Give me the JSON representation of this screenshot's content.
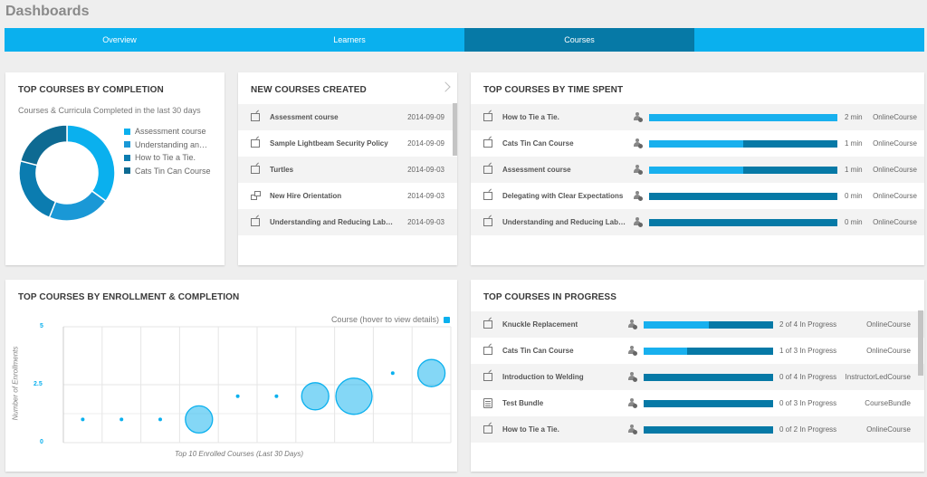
{
  "page": {
    "title": "Dashboards"
  },
  "tabs": [
    {
      "label": "Overview",
      "active": false
    },
    {
      "label": "Learners",
      "active": false
    },
    {
      "label": "Courses",
      "active": true
    },
    {
      "label": "",
      "active": false
    }
  ],
  "colors": {
    "accent": "#0ab0ee",
    "dark": "#0679a6",
    "mid": "#18a0de",
    "darkest": "#0e6a92"
  },
  "completion": {
    "title": "TOP COURSES BY COMPLETION",
    "subtitle": "Courses & Curricula Completed in the last 30 days",
    "legend": [
      {
        "label": "Assessment course",
        "color": "#0ab0ee"
      },
      {
        "label": "Understanding an…",
        "color": "#1a98d6"
      },
      {
        "label": "How to Tie a Tie.",
        "color": "#0b7cb0"
      },
      {
        "label": "Cats Tin Can Course",
        "color": "#0e6a92"
      }
    ],
    "chart_data": {
      "type": "pie",
      "categories": [
        "Assessment course",
        "Understanding an…",
        "How to Tie a Tie.",
        "Cats Tin Can Course"
      ],
      "values": [
        35,
        21,
        23,
        21
      ]
    }
  },
  "new_courses": {
    "title": "NEW COURSES CREATED",
    "items": [
      {
        "name": "Assessment course",
        "date": "2014-09-09",
        "icon": "course-icon"
      },
      {
        "name": "Sample Lightbeam Security Policy",
        "date": "2014-09-09",
        "icon": "course-icon"
      },
      {
        "name": "Turtles",
        "date": "2014-09-03",
        "icon": "course-icon"
      },
      {
        "name": "New Hire Orientation",
        "date": "2014-09-03",
        "icon": "curriculum-icon"
      },
      {
        "name": "Understanding and Reducing Lab…",
        "date": "2014-09-03",
        "icon": "course-icon"
      }
    ]
  },
  "time_spent": {
    "title": "TOP COURSES BY TIME SPENT",
    "items": [
      {
        "name": "How to Tie a Tie.",
        "time": "2 min",
        "type": "OnlineCourse",
        "fill": 1.0
      },
      {
        "name": "Cats Tin Can Course",
        "time": "1 min",
        "type": "OnlineCourse",
        "fill": 0.5
      },
      {
        "name": "Assessment course",
        "time": "1 min",
        "type": "OnlineCourse",
        "fill": 0.5
      },
      {
        "name": "Delegating with Clear Expectations",
        "time": "0 min",
        "type": "OnlineCourse",
        "fill": 0
      },
      {
        "name": "Understanding and Reducing Lab…",
        "time": "0 min",
        "type": "OnlineCourse",
        "fill": 0
      }
    ]
  },
  "enrollment": {
    "title": "TOP COURSES BY ENROLLMENT & COMPLETION",
    "legend_label": "Course (hover to view details)",
    "chart_data": {
      "type": "scatter",
      "ylabel": "Number of Enrollments",
      "xlabel": "Top 10 Enrolled Courses (Last 30 Days)",
      "yticks": [
        "0",
        "2.5",
        "5"
      ],
      "ylim": [
        0,
        5
      ],
      "points": [
        {
          "x": 1,
          "y": 1,
          "size": 0
        },
        {
          "x": 2,
          "y": 1,
          "size": 0
        },
        {
          "x": 3,
          "y": 1,
          "size": 0
        },
        {
          "x": 4,
          "y": 1,
          "size": 1
        },
        {
          "x": 5,
          "y": 2,
          "size": 0
        },
        {
          "x": 6,
          "y": 2,
          "size": 0
        },
        {
          "x": 7,
          "y": 2,
          "size": 1
        },
        {
          "x": 8,
          "y": 2,
          "size": 2
        },
        {
          "x": 9,
          "y": 3,
          "size": 0
        },
        {
          "x": 10,
          "y": 3,
          "size": 1
        }
      ]
    }
  },
  "in_progress": {
    "title": "TOP COURSES IN PROGRESS",
    "items": [
      {
        "name": "Knuckle Replacement",
        "progress": "2 of 4 In Progress",
        "type": "OnlineCourse",
        "fill": 0.5,
        "icon": "course-icon"
      },
      {
        "name": "Cats Tin Can Course",
        "progress": "1 of 3 In Progress",
        "type": "OnlineCourse",
        "fill": 0.333,
        "icon": "course-icon"
      },
      {
        "name": "Introduction to Welding",
        "progress": "0 of 4 In Progress",
        "type": "InstructorLedCourse",
        "fill": 0,
        "icon": "instructor-led-icon"
      },
      {
        "name": "Test Bundle",
        "progress": "0 of 3 In Progress",
        "type": "CourseBundle",
        "fill": 0,
        "icon": "bundle-icon"
      },
      {
        "name": "How to Tie a Tie.",
        "progress": "0 of 2 In Progress",
        "type": "OnlineCourse",
        "fill": 0,
        "icon": "course-icon"
      }
    ]
  }
}
